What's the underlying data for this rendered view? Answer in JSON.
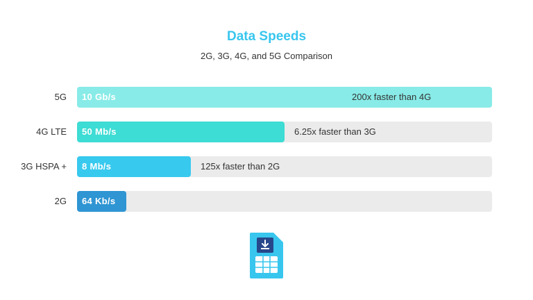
{
  "title": "Data Speeds",
  "subtitle": "2G, 3G, 4G, and 5G Comparison",
  "icon": "sim-card-icon",
  "colors": {
    "title": "#38c6ee",
    "track": "#ebebeb",
    "bar_5g": "#88ebe7",
    "bar_4g": "#3ddcd4",
    "bar_3g": "#38c9ee",
    "bar_2g": "#2f95d3"
  },
  "chart_data": {
    "type": "bar",
    "orientation": "horizontal",
    "title": "Data Speeds",
    "subtitle": "2G, 3G, 4G, and 5G Comparison",
    "categories": [
      "5G",
      "4G LTE",
      "3G HSPA +",
      "2G"
    ],
    "values": [
      1,
      0.5,
      0.275,
      0.118
    ],
    "value_unit": "fraction of bar track",
    "speed_labels": [
      "10 Gb/s",
      "50 Mb/s",
      "8 Mb/s",
      "64 Kb/s"
    ],
    "annotations": [
      "200x faster than 4G",
      "6.25x faster than 3G",
      "125x faster than 2G",
      ""
    ],
    "bar_colors": [
      "#88ebe7",
      "#3ddcd4",
      "#38c9ee",
      "#2f95d3"
    ],
    "grid": false,
    "legend": "none"
  }
}
